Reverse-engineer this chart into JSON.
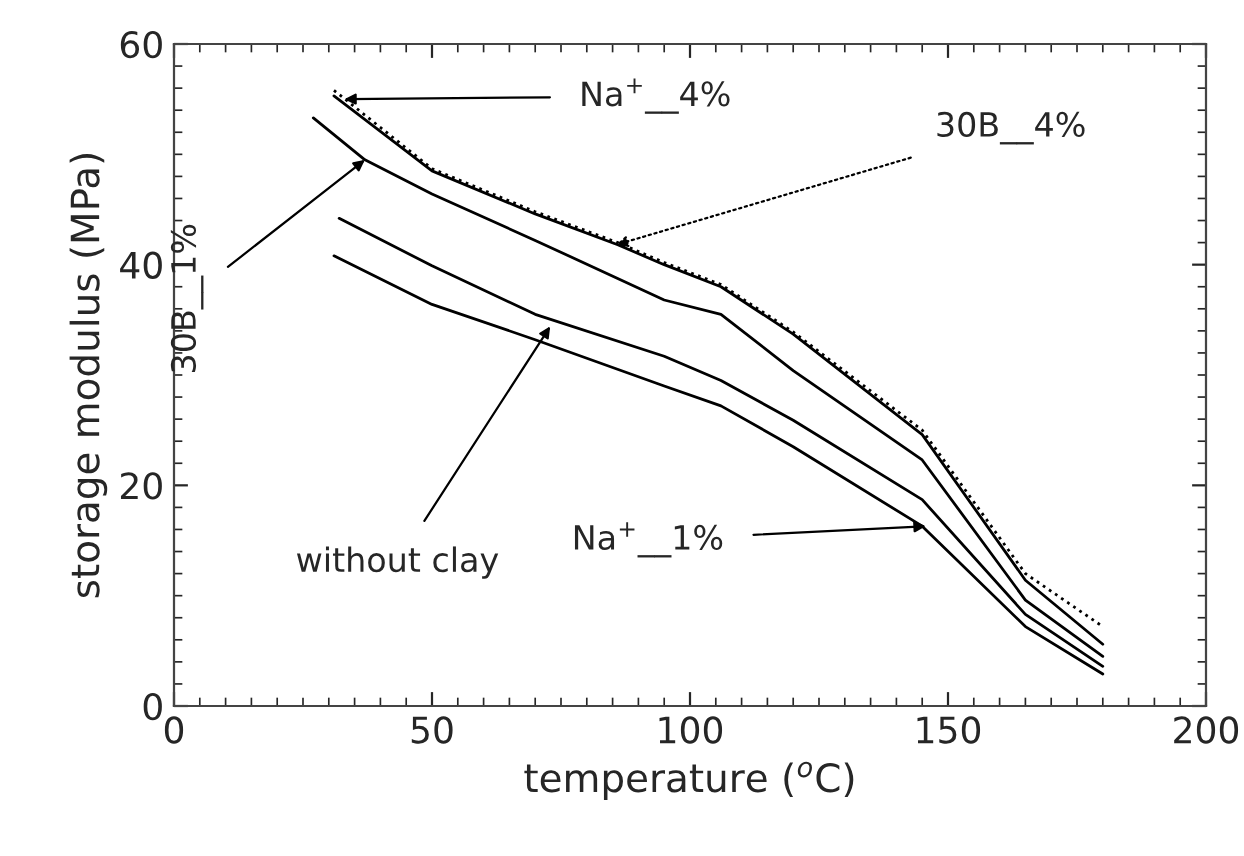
{
  "chart_data": {
    "type": "line",
    "xlabel": "temperature ($^{o}$C)",
    "ylabel": "storage modulus (MPa)",
    "xlim": [
      0,
      200
    ],
    "xticks": [
      0,
      50,
      100,
      150,
      200
    ],
    "ylim": [
      0,
      60
    ],
    "yticks": [
      0,
      20,
      40,
      60
    ],
    "grid": false,
    "legend": false,
    "marker": "none",
    "series": [
      {
        "color": "#000000",
        "line_style": "solid",
        "x": [
          31,
          50,
          70,
          86,
          95,
          106,
          120,
          145,
          165,
          180
        ],
        "values": [
          55.3,
          48.5,
          44.6,
          41.8,
          40,
          38,
          33.7,
          24.6,
          11.4,
          5.6
        ]
      },
      {
        "color": "#000000",
        "line_style": "dotted",
        "x": [
          31,
          50,
          70,
          86,
          95,
          106,
          120,
          145,
          165,
          180
        ],
        "values": [
          55.8,
          48.7,
          44.8,
          42,
          40.2,
          38.2,
          33.9,
          25,
          12,
          7.2
        ]
      },
      {
        "color": "#000000",
        "line_style": "solid",
        "x": [
          27,
          37,
          50,
          70,
          95,
          106,
          120,
          145,
          165,
          180
        ],
        "values": [
          53.3,
          49.5,
          46.4,
          42.2,
          36.8,
          35.5,
          30.4,
          22.3,
          9.6,
          4.5
        ]
      },
      {
        "color": "#000000",
        "line_style": "solid",
        "x": [
          32,
          50,
          70,
          95,
          106,
          120,
          145,
          165,
          180
        ],
        "values": [
          44.2,
          39.9,
          35.5,
          31.7,
          29.5,
          25.9,
          18.7,
          8.3,
          3.6
        ]
      },
      {
        "color": "#000000",
        "line_style": "solid",
        "x": [
          31,
          50,
          70,
          95,
          106,
          120,
          145,
          165,
          180
        ],
        "values": [
          40.8,
          36.4,
          33.2,
          29,
          27.2,
          23.5,
          16.3,
          7.2,
          2.9
        ]
      }
    ],
    "annotations": [
      {
        "text": "Na$^{+}$__4%",
        "x": 33,
        "y": 55
      },
      {
        "text": "30B__4%",
        "x": 85.7,
        "y": 41.8
      },
      {
        "text": "30B__1%",
        "x": 37,
        "y": 49.5
      },
      {
        "text": "without clay",
        "x": 72.9,
        "y": 34.4
      },
      {
        "text": "Na$^{+}$__1%",
        "x": 145.7,
        "y": 16.3
      }
    ]
  }
}
